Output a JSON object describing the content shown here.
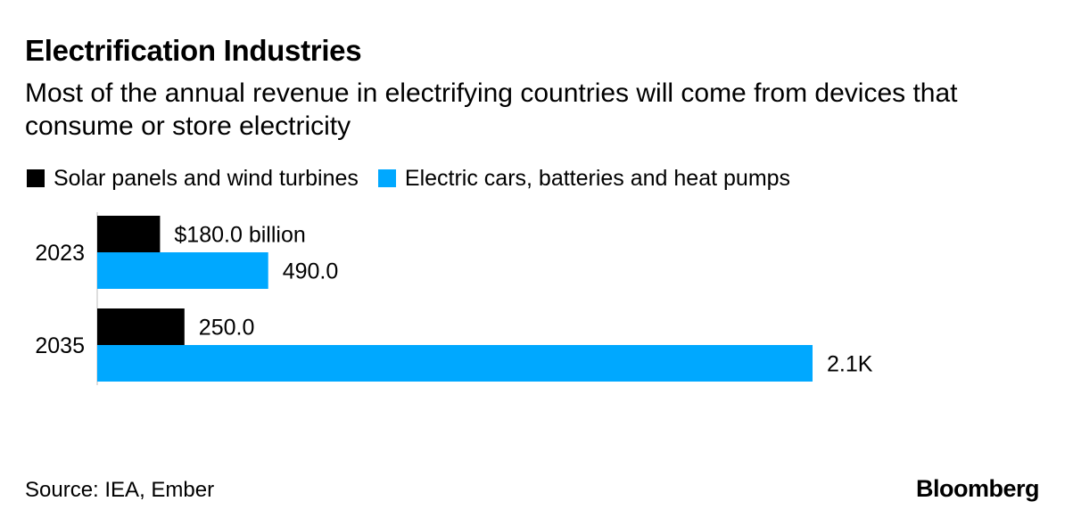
{
  "chart_data": {
    "type": "bar",
    "orientation": "horizontal",
    "title": "Electrification Industries",
    "subtitle": "Most of the annual revenue in electrifying countries will come from devices that consume or store electricity",
    "categories": [
      "2023",
      "2035"
    ],
    "series": [
      {
        "name": "Solar panels and wind turbines",
        "color": "#000000",
        "values": [
          180,
          250
        ],
        "labels": [
          "$180.0 billion",
          "250.0"
        ]
      },
      {
        "name": "Electric cars, batteries and heat pumps",
        "color": "#00a8ff",
        "values": [
          490,
          2050
        ],
        "labels": [
          "490.0",
          "2.1K"
        ]
      }
    ],
    "unit": "billion USD",
    "xlim": [
      0,
      2050
    ],
    "grid": false,
    "legend_position": "top-left"
  },
  "source": "Source: IEA, Ember",
  "brand": "Bloomberg"
}
